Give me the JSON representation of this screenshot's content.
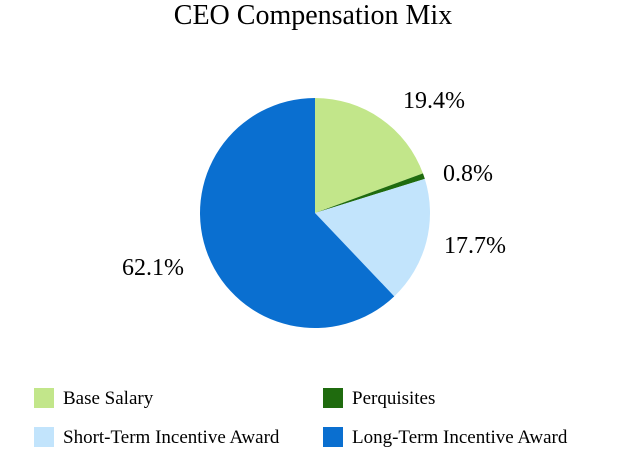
{
  "chart_data": {
    "type": "pie",
    "title": "CEO Compensation Mix",
    "slices": [
      {
        "name": "Base Salary",
        "value": 19.4,
        "label": "19.4%",
        "color": "#c2e68a"
      },
      {
        "name": "Perquisites",
        "value": 0.8,
        "label": "0.8%",
        "color": "#1f6b0e"
      },
      {
        "name": "Short-Term Incentive Award",
        "value": 17.7,
        "label": "17.7%",
        "color": "#c2e4fc"
      },
      {
        "name": "Long-Term Incentive Award",
        "value": 62.1,
        "label": "62.1%",
        "color": "#0a6fd0"
      }
    ],
    "start_angle_deg": 0,
    "direction": "clockwise",
    "legend_position": "bottom",
    "legend_columns": 2
  }
}
